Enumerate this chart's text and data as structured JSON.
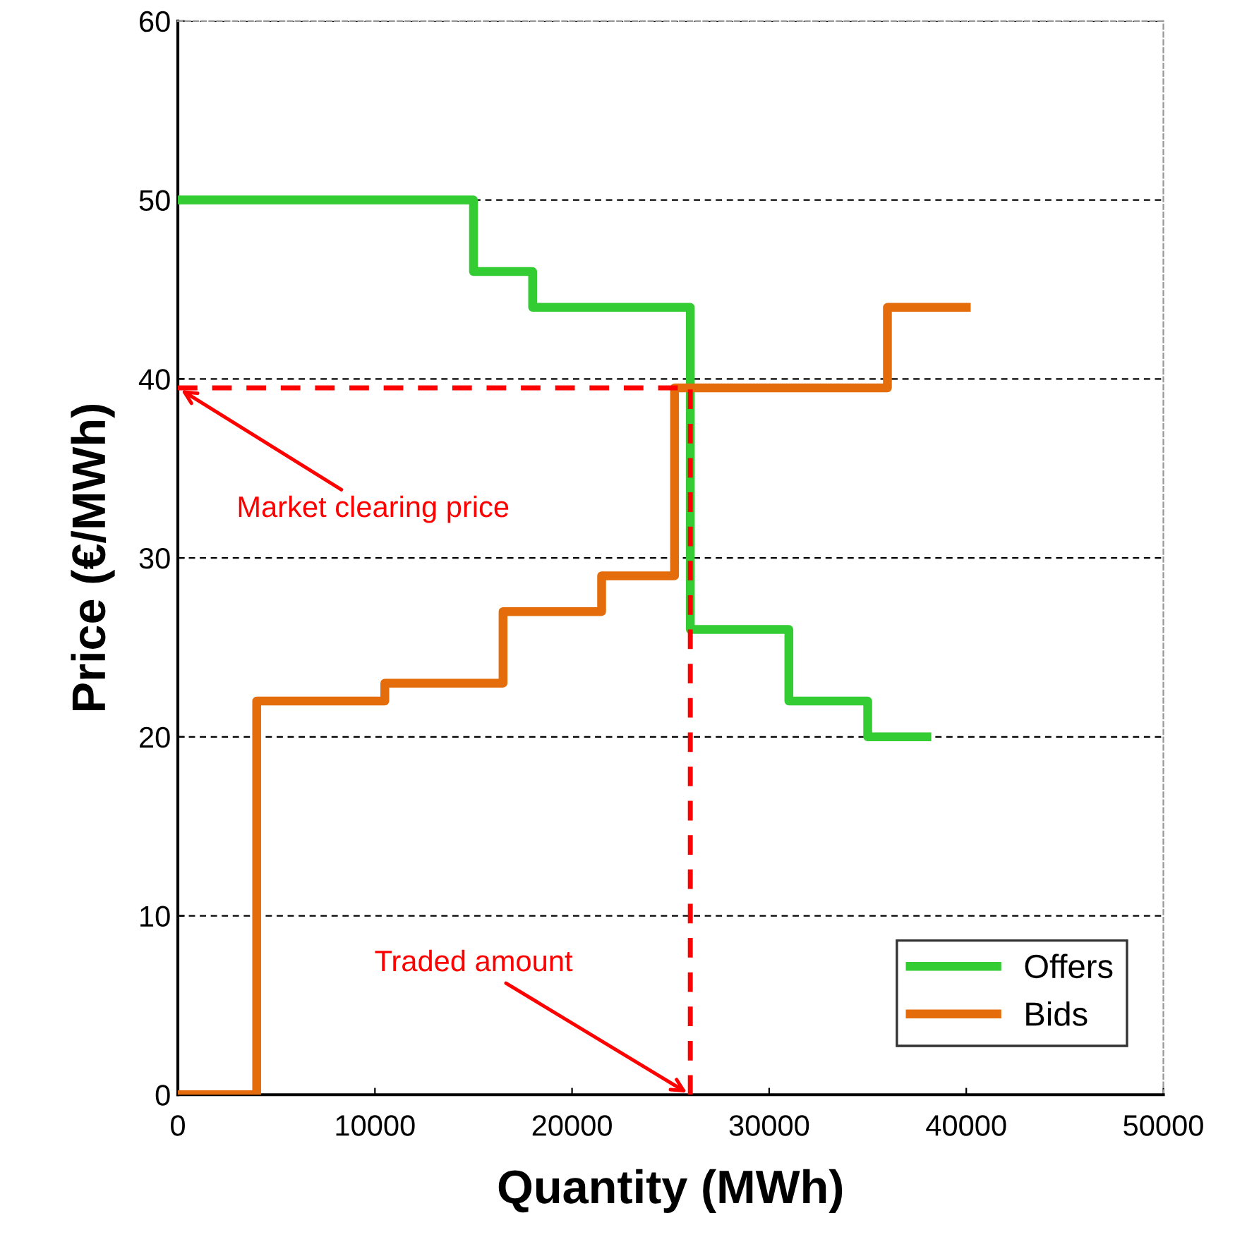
{
  "chart_data": {
    "type": "step",
    "xlabel": "Quantity (MWh)",
    "ylabel": "Price (€/MWh)",
    "xlim": [
      0,
      50000
    ],
    "xticks": [
      0,
      10000,
      20000,
      30000,
      40000,
      50000
    ],
    "ylim": [
      0,
      60
    ],
    "yticks": [
      0,
      10,
      20,
      30,
      40,
      50,
      60
    ],
    "grid": "y",
    "legend": "bottom right",
    "series": [
      {
        "name": "Offers",
        "color": "#33cc33",
        "x": [
          0,
          15000,
          18000,
          26000,
          31000,
          35000,
          38000
        ],
        "values": [
          50,
          46,
          44,
          26,
          22,
          20,
          20
        ]
      },
      {
        "name": "Bids",
        "color": "#e46c0a",
        "x": [
          0,
          4000,
          10500,
          16500,
          21500,
          25200,
          36000,
          40000
        ],
        "values": [
          0,
          22,
          23,
          27,
          29,
          39.5,
          44,
          44
        ]
      },
      {
        "type": "line",
        "line_style": "dashed",
        "color": "#ff0000",
        "x": [
          0,
          26000
        ],
        "values": [
          39.5,
          39.5
        ]
      },
      {
        "type": "line",
        "line_style": "dashed",
        "color": "#ff0000",
        "x": [
          26000,
          26000
        ],
        "values": [
          0,
          39.5
        ]
      }
    ],
    "annotations": [
      {
        "text": "Market clearing price",
        "x": 0,
        "y": 39.5
      },
      {
        "text": "Traded amount",
        "x": 26000,
        "y": 0
      }
    ]
  }
}
